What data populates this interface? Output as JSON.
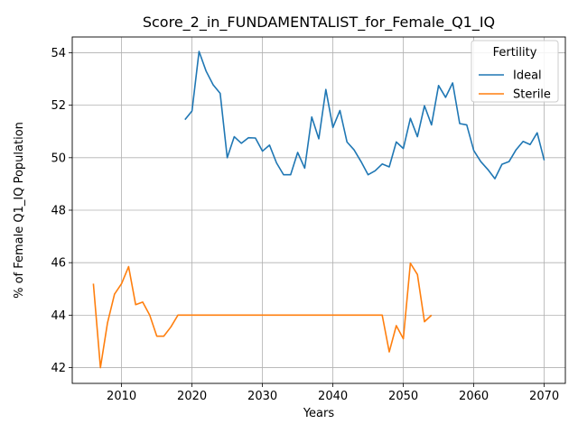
{
  "chart_data": {
    "type": "line",
    "title": "Score_2_in_FUNDAMENTALIST_for_Female_Q1_IQ",
    "xlabel": "Years",
    "ylabel": "% of Female Q1_IQ Population",
    "xlim": [
      2003,
      2073
    ],
    "ylim": [
      41.4,
      54.6
    ],
    "xticks": [
      2010,
      2020,
      2030,
      2040,
      2050,
      2060,
      2070
    ],
    "yticks": [
      42,
      44,
      46,
      48,
      50,
      52,
      54
    ],
    "grid": true,
    "legend": {
      "title": "Fertility",
      "placement": "top-right"
    },
    "series": [
      {
        "name": "Ideal",
        "color": "#1f77b4",
        "x": [
          2019,
          2020,
          2021,
          2022,
          2023,
          2024,
          2025,
          2026,
          2027,
          2028,
          2029,
          2030,
          2031,
          2032,
          2033,
          2034,
          2035,
          2036,
          2037,
          2038,
          2039,
          2040,
          2041,
          2042,
          2043,
          2044,
          2045,
          2046,
          2047,
          2048,
          2049,
          2050,
          2051,
          2052,
          2053,
          2054,
          2055,
          2056,
          2057,
          2058,
          2059,
          2060,
          2061,
          2062,
          2063,
          2064,
          2065,
          2066,
          2067,
          2068,
          2069,
          2070
        ],
        "values": [
          51.45,
          51.78,
          54.05,
          53.3,
          52.78,
          52.45,
          50.0,
          50.8,
          50.55,
          50.76,
          50.75,
          50.25,
          50.48,
          49.8,
          49.35,
          49.35,
          50.2,
          49.6,
          51.55,
          50.72,
          52.6,
          51.15,
          51.8,
          50.6,
          50.3,
          49.85,
          49.35,
          49.5,
          49.76,
          49.65,
          50.6,
          50.35,
          51.5,
          50.8,
          51.98,
          51.25,
          52.75,
          52.3,
          52.85,
          51.3,
          51.25,
          50.27,
          49.85,
          49.55,
          49.2,
          49.75,
          49.85,
          50.3,
          50.62,
          50.5,
          50.95,
          49.9
        ]
      },
      {
        "name": "Sterile",
        "color": "#ff7f0e",
        "x": [
          2006,
          2007,
          2008,
          2009,
          2010,
          2011,
          2012,
          2013,
          2014,
          2015,
          2016,
          2017,
          2018,
          2019,
          2020,
          2021,
          2022,
          2023,
          2024,
          2025,
          2026,
          2027,
          2028,
          2029,
          2030,
          2031,
          2032,
          2033,
          2034,
          2035,
          2036,
          2037,
          2038,
          2039,
          2040,
          2041,
          2042,
          2043,
          2044,
          2045,
          2046,
          2047,
          2048,
          2049,
          2050,
          2051,
          2052,
          2053,
          2054
        ],
        "values": [
          45.2,
          42.0,
          43.7,
          44.8,
          45.2,
          45.85,
          44.4,
          44.5,
          44.0,
          43.2,
          43.2,
          43.55,
          44.0,
          44.0,
          44.0,
          44.0,
          44.0,
          44.0,
          44.0,
          44.0,
          44.0,
          44.0,
          44.0,
          44.0,
          44.0,
          44.0,
          44.0,
          44.0,
          44.0,
          44.0,
          44.0,
          44.0,
          44.0,
          44.0,
          44.0,
          44.0,
          44.0,
          44.0,
          44.0,
          44.0,
          44.0,
          44.0,
          42.6,
          43.6,
          43.1,
          45.98,
          45.55,
          43.75,
          44.0
        ]
      }
    ]
  }
}
